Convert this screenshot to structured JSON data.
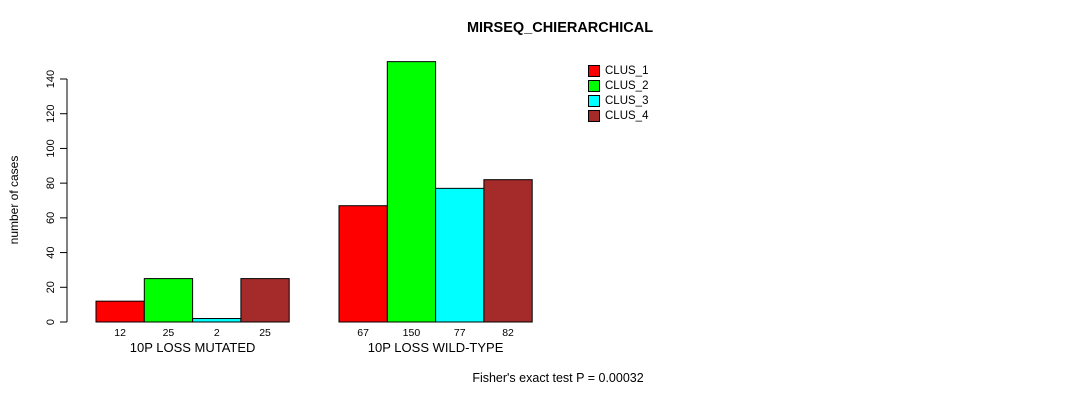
{
  "chart_data": {
    "type": "bar",
    "title": "MIRSEQ_CHIERARCHICAL",
    "ylabel": "number of cases",
    "xlabel": "",
    "categories": [
      "10P LOSS MUTATED",
      "10P LOSS WILD-TYPE"
    ],
    "series": [
      {
        "name": "CLUS_1",
        "color": "#ff0000",
        "values": [
          12,
          67
        ]
      },
      {
        "name": "CLUS_2",
        "color": "#00ff00",
        "values": [
          25,
          150
        ]
      },
      {
        "name": "CLUS_3",
        "color": "#00ffff",
        "values": [
          2,
          77
        ]
      },
      {
        "name": "CLUS_4",
        "color": "#a52a2a",
        "values": [
          25,
          82
        ]
      }
    ],
    "ylim": [
      0,
      140
    ],
    "yticks": [
      0,
      20,
      40,
      60,
      80,
      100,
      120,
      140
    ],
    "grid": false,
    "legend_position": "top-right",
    "bars_outlined": true,
    "annotation": "Fisher's exact test P = 0.00032"
  }
}
